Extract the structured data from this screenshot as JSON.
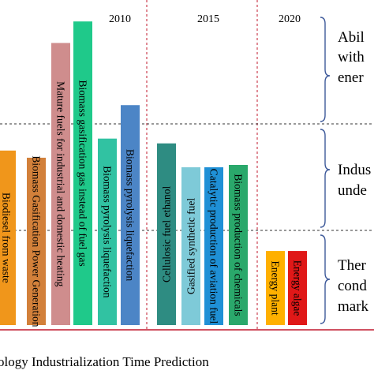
{
  "chart_data": {
    "type": "bar",
    "title": "ology Industrialization Time Prediction",
    "periods": [
      "2010",
      "2015",
      "2020"
    ],
    "categories": [
      "Biodiesel from waste",
      "Biomass Gasification Power Generation",
      "Mature fuels for industrial and domestic heating",
      "Biomass gasification gas instead of fuel gas",
      "Biomass pyrolysis liquefaction",
      "Biomass pyrolysis liquefaction",
      "Cellulosic fuel ethanol",
      "Gasified synthetic fuel",
      "Catalytic production of aviation fuel",
      "Biomass production of chemicals",
      "Energy plant",
      "Energy algae"
    ],
    "values": [
      7.3,
      7.0,
      11.8,
      12.7,
      7.8,
      9.2,
      7.6,
      6.6,
      6.6,
      6.7,
      3.1,
      3.1
    ],
    "colors": [
      "#f0961b",
      "#d2803a",
      "#cf8d8d",
      "#1fc98a",
      "#31c2a2",
      "#4c85c6",
      "#2e8c82",
      "#7ecad8",
      "#1f90d6",
      "#2aa86b",
      "#ffb000",
      "#e01818"
    ],
    "side_labels": [
      "Abil",
      "with",
      "ener",
      "Indus",
      "unde",
      "Ther",
      "cond",
      "mark"
    ]
  }
}
